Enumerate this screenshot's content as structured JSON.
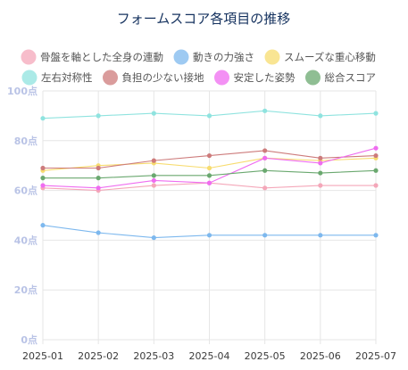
{
  "chart_data": {
    "type": "line",
    "title": "フォームスコア各項目の推移",
    "categories": [
      "2025-01",
      "2025-02",
      "2025-03",
      "2025-04",
      "2025-05",
      "2025-06",
      "2025-07"
    ],
    "ylim": [
      0,
      100
    ],
    "yticks": [
      {
        "value": 0,
        "label": "0点"
      },
      {
        "value": 20,
        "label": "20点"
      },
      {
        "value": 40,
        "label": "40点"
      },
      {
        "value": 60,
        "label": "60点"
      },
      {
        "value": 80,
        "label": "80点"
      },
      {
        "value": 100,
        "label": "100点"
      }
    ],
    "grid": true,
    "legend_position": "top",
    "series": [
      {
        "name": "骨盤を軸とした全身の連動",
        "color": "#f4a7b9",
        "values": [
          61,
          60,
          62,
          63,
          61,
          62,
          62
        ]
      },
      {
        "name": "動きの力強さ",
        "color": "#7db8ee",
        "values": [
          46,
          43,
          41,
          42,
          42,
          42,
          42
        ]
      },
      {
        "name": "スムーズな重心移動",
        "color": "#f7dc6f",
        "values": [
          68,
          70,
          71,
          69,
          73,
          72,
          73
        ]
      },
      {
        "name": "左右対称性",
        "color": "#8fe3df",
        "values": [
          89,
          90,
          91,
          90,
          92,
          90,
          91
        ]
      },
      {
        "name": "負担の少ない接地",
        "color": "#cd7b7b",
        "values": [
          69,
          69,
          72,
          74,
          76,
          73,
          74
        ]
      },
      {
        "name": "安定した姿勢",
        "color": "#ef6cf0",
        "values": [
          62,
          61,
          64,
          63,
          73,
          71,
          77
        ]
      },
      {
        "name": "総合スコア",
        "color": "#6aa86f",
        "values": [
          65,
          65,
          66,
          66,
          68,
          67,
          68
        ]
      }
    ]
  }
}
